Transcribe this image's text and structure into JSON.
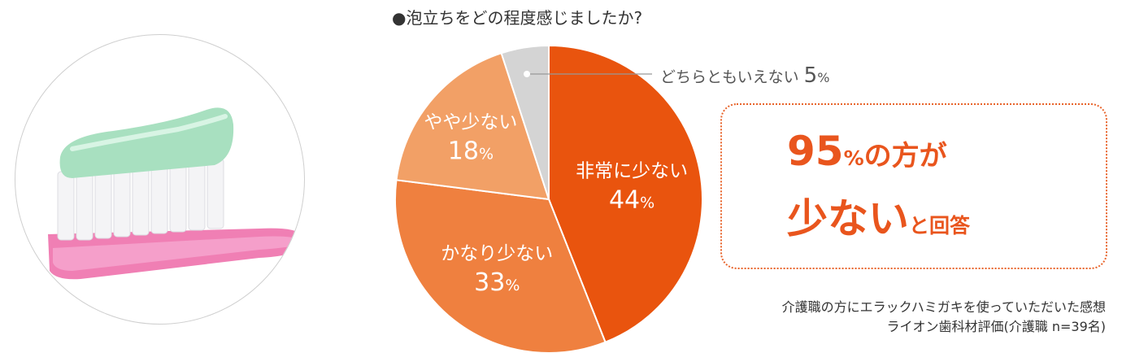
{
  "question": "●泡立ちをどの程度感じましたか?",
  "colors": {
    "accent": "#e9551d",
    "slice_colors": [
      "#e9540e",
      "#ef803f",
      "#f2a066",
      "#d4d4d4"
    ]
  },
  "photo": {
    "icon": "toothbrush-with-toothpaste-photo"
  },
  "chart_data": {
    "type": "pie",
    "title": "●泡立ちをどの程度感じましたか?",
    "slices": [
      {
        "label": "非常に少ない",
        "value": 44,
        "value_text": "44",
        "unit": "%"
      },
      {
        "label": "かなり少ない",
        "value": 33,
        "value_text": "33",
        "unit": "%"
      },
      {
        "label": "やや少ない",
        "value": 18,
        "value_text": "18",
        "unit": "%"
      },
      {
        "label": "どちらともいえない",
        "value": 5,
        "value_text": "5",
        "unit": "%"
      }
    ],
    "start": "top",
    "direction": "clockwise"
  },
  "callout": {
    "label": "どちらともいえない",
    "value": "5",
    "unit": "%"
  },
  "highlight": {
    "number": "95",
    "percent": "%",
    "line1_rest": "の方が",
    "line2_big": "少ない",
    "line2_small": "と回答"
  },
  "footnote": {
    "line1": "介護職の方にエラックハミガキを使っていただいた感想",
    "line2": "ライオン歯科材評価(介護職 n=39名)"
  }
}
